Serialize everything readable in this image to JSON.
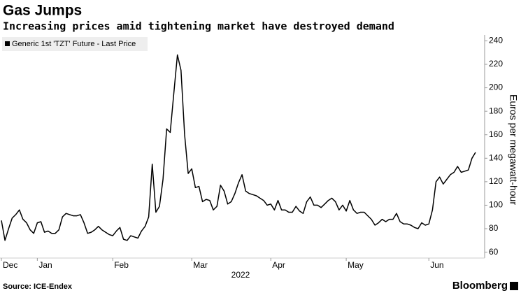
{
  "chart_data": {
    "type": "line",
    "title": "Gas Jumps",
    "subtitle": "Increasing prices amid tightening market have destroyed demand",
    "y_label": "Euros per megawatt-hour",
    "x_label": "2022",
    "source": "Source: ICE-Endex",
    "brand": "Bloomberg",
    "categories": [
      "Dec",
      null,
      null,
      null,
      null,
      null,
      null,
      null,
      null,
      null,
      "Jan",
      null,
      null,
      null,
      null,
      null,
      null,
      null,
      null,
      null,
      null,
      null,
      null,
      null,
      null,
      null,
      null,
      null,
      null,
      null,
      null,
      "Feb",
      null,
      null,
      null,
      null,
      null,
      null,
      null,
      null,
      null,
      null,
      null,
      null,
      null,
      null,
      null,
      null,
      null,
      null,
      null,
      null,
      null,
      "Mar",
      null,
      null,
      null,
      null,
      null,
      null,
      null,
      null,
      null,
      null,
      null,
      null,
      null,
      null,
      null,
      null,
      null,
      null,
      null,
      null,
      null,
      "Apr",
      null,
      null,
      null,
      null,
      null,
      null,
      null,
      null,
      null,
      null,
      null,
      null,
      null,
      null,
      null,
      null,
      null,
      null,
      null,
      null,
      "May",
      null,
      null,
      null,
      null,
      null,
      null,
      null,
      null,
      null,
      null,
      null,
      null,
      null,
      null,
      null,
      null,
      null,
      null,
      null,
      null,
      null,
      null,
      "Jun",
      null,
      null,
      null,
      null,
      null,
      null,
      null,
      null,
      null,
      null,
      null,
      null,
      null
    ],
    "series": [
      {
        "name": "Generic 1st 'TZT' Future - Last Price",
        "color": "#000000",
        "values": [
          87,
          70,
          80,
          89,
          92,
          96,
          88,
          85,
          79,
          76,
          85,
          86,
          77,
          78,
          76,
          76,
          79,
          90,
          93,
          92,
          91,
          91,
          92,
          85,
          76,
          77,
          79,
          82,
          79,
          77,
          75,
          74,
          78,
          81,
          71,
          70,
          74,
          73,
          72,
          78,
          82,
          90,
          135,
          94,
          99,
          122,
          165,
          162,
          195,
          228,
          215,
          160,
          127,
          131,
          115,
          116,
          103,
          105,
          104,
          96,
          99,
          117,
          112,
          101,
          103,
          110,
          119,
          126,
          112,
          110,
          109,
          108,
          106,
          104,
          100,
          101,
          96,
          104,
          96,
          96,
          94,
          94,
          99,
          95,
          93,
          103,
          107,
          100,
          100,
          98,
          101,
          104,
          106,
          103,
          96,
          100,
          95,
          104,
          96,
          93,
          94,
          94,
          91,
          88,
          83,
          85,
          88,
          86,
          88,
          88,
          93,
          86,
          84,
          84,
          83,
          81,
          80,
          85,
          83,
          84,
          96,
          120,
          124,
          118,
          122,
          126,
          128,
          133,
          128,
          129,
          130,
          140,
          145
        ]
      }
    ],
    "ylim": [
      55,
      245
    ],
    "yticks": [
      60,
      80,
      100,
      120,
      140,
      160,
      180,
      200,
      220,
      240
    ],
    "grid": false,
    "legend": "top-left"
  }
}
